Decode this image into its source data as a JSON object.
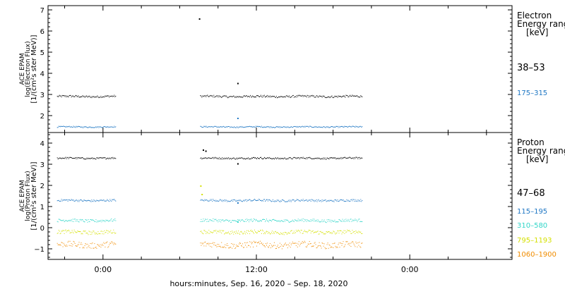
{
  "chart_data": [
    {
      "type": "scatter",
      "panel": "electron",
      "ylabel_lines": [
        "ACE EPAM",
        "log(Electron Flux)",
        "[1/(cm²s ster MeV)]"
      ],
      "ylim": [
        1.2,
        7.2
      ],
      "yticks": [
        2,
        3,
        4,
        5,
        6,
        7
      ],
      "legend_title": [
        "Electron",
        "Energy ranges",
        "[keV]"
      ],
      "series": [
        {
          "name": "38-53",
          "color": "#000000",
          "level": 2.92,
          "spread": 0.05,
          "segments": [
            [
              -3.6,
              1.0
            ],
            [
              7.6,
              20.3
            ]
          ],
          "outliers": [
            [
              7.5,
              6.6
            ],
            [
              10.5,
              3.55
            ]
          ]
        },
        {
          "name": "175-315",
          "color": "#1f77c4",
          "level": 1.48,
          "spread": 0.03,
          "segments": [
            [
              -3.6,
              1.0
            ],
            [
              7.6,
              20.3
            ]
          ],
          "outliers": [
            [
              10.5,
              1.9
            ]
          ]
        }
      ]
    },
    {
      "type": "scatter",
      "panel": "proton",
      "ylabel_lines": [
        "ACE EPAM",
        "log(Proton Flux)",
        "[1/(cm²s ster MeV)]"
      ],
      "ylim": [
        -1.5,
        4.5
      ],
      "yticks": [
        -1,
        0,
        1,
        2,
        3,
        4
      ],
      "legend_title": [
        "Proton",
        "Energy ranges",
        "[keV]"
      ],
      "series": [
        {
          "name": "47-68",
          "color": "#000000",
          "level": 3.3,
          "spread": 0.04,
          "segments": [
            [
              -3.6,
              1.0
            ],
            [
              7.6,
              20.3
            ]
          ],
          "outliers": [
            [
              7.8,
              3.7
            ],
            [
              8.0,
              3.65
            ],
            [
              10.5,
              3.05
            ]
          ]
        },
        {
          "name": "115-195",
          "color": "#1f77c4",
          "level": 1.3,
          "spread": 0.05,
          "segments": [
            [
              -3.6,
              1.0
            ],
            [
              7.6,
              20.3
            ]
          ],
          "outliers": [
            [
              10.5,
              1.2
            ]
          ]
        },
        {
          "name": "310-580",
          "color": "#30d5c8",
          "level": 0.35,
          "spread": 0.07,
          "segments": [
            [
              -3.6,
              1.0
            ],
            [
              7.6,
              20.3
            ]
          ],
          "outliers": [
            [
              10.5,
              0.3
            ]
          ]
        },
        {
          "name": "795-1193",
          "color": "#d4e000",
          "level": -0.2,
          "spread": 0.09,
          "segments": [
            [
              -3.6,
              1.0
            ],
            [
              7.6,
              20.3
            ]
          ],
          "outliers": [
            [
              7.6,
              2.0
            ],
            [
              7.7,
              1.6
            ]
          ]
        },
        {
          "name": "1060-1900",
          "color": "#f08c00",
          "level": -0.8,
          "spread": 0.14,
          "segments": [
            [
              -3.6,
              1.0
            ],
            [
              7.6,
              20.3
            ]
          ],
          "outliers": []
        }
      ]
    }
  ],
  "x_axis": {
    "xlim": [
      -4.3,
      32.0
    ],
    "ticks": [
      {
        "hour": 0,
        "label": "0:00"
      },
      {
        "hour": 12,
        "label": "12:00"
      },
      {
        "hour": 24,
        "label": "0:00"
      }
    ],
    "minor_step_hours": 3,
    "xlabel": "hours:minutes, Sep. 16, 2020 - Sep. 18, 2020"
  }
}
